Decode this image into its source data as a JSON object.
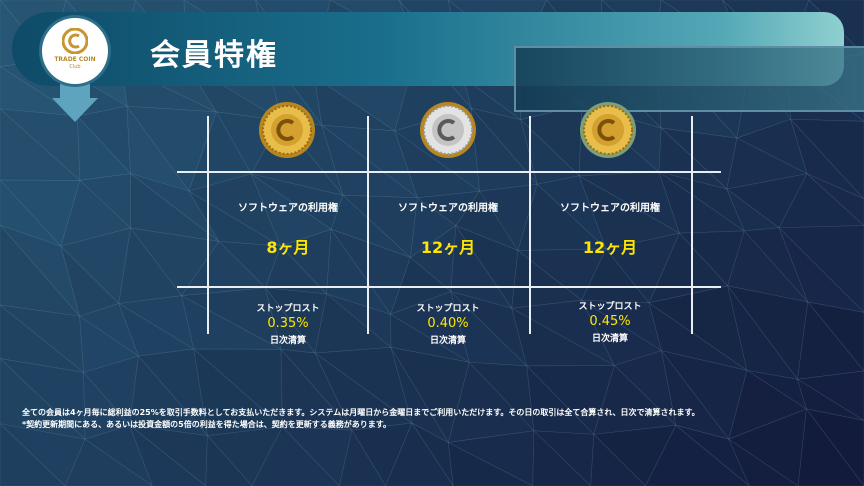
{
  "header": {
    "title": "会員特権"
  },
  "logo": {
    "brand": "TRADE COIN",
    "sub": "Club"
  },
  "tiers": [
    {
      "coin": "gold-coin-icon",
      "feature": "ソフトウェアの利用権",
      "duration": "8ヶ月",
      "stoploss_label": "ストップロスト",
      "rate": "0.35%",
      "settlement": "日次清算"
    },
    {
      "coin": "silver-coin-icon",
      "feature": "ソフトウェアの利用権",
      "duration": "12ヶ月",
      "stoploss_label": "ストップロスト",
      "rate": "0.40%",
      "settlement": "日次清算"
    },
    {
      "coin": "gold-coin-icon",
      "feature": "ソフトウェアの利用権",
      "duration": "12ヶ月",
      "stoploss_label": "ストップロスト",
      "rate": "0.45%",
      "settlement": "日次清算"
    }
  ],
  "footer": {
    "line1": "全ての会員は4ヶ月毎に総利益の25%を取引手数料としてお支払いただきます。システムは月曜日から金曜日までご利用いただけます。その日の取引は全て合算され、日次で清算されます。",
    "line2": "*契約更新期間にある、あるいは投資金額の5倍の利益を得た場合は、契約を更新する義務があります。"
  },
  "colors": {
    "accent_yellow": "#ffe600",
    "banner_start": "#0e4b68",
    "banner_end": "#8fd0cf",
    "gold": "#d9a93a",
    "silver": "#c9c9c9"
  }
}
